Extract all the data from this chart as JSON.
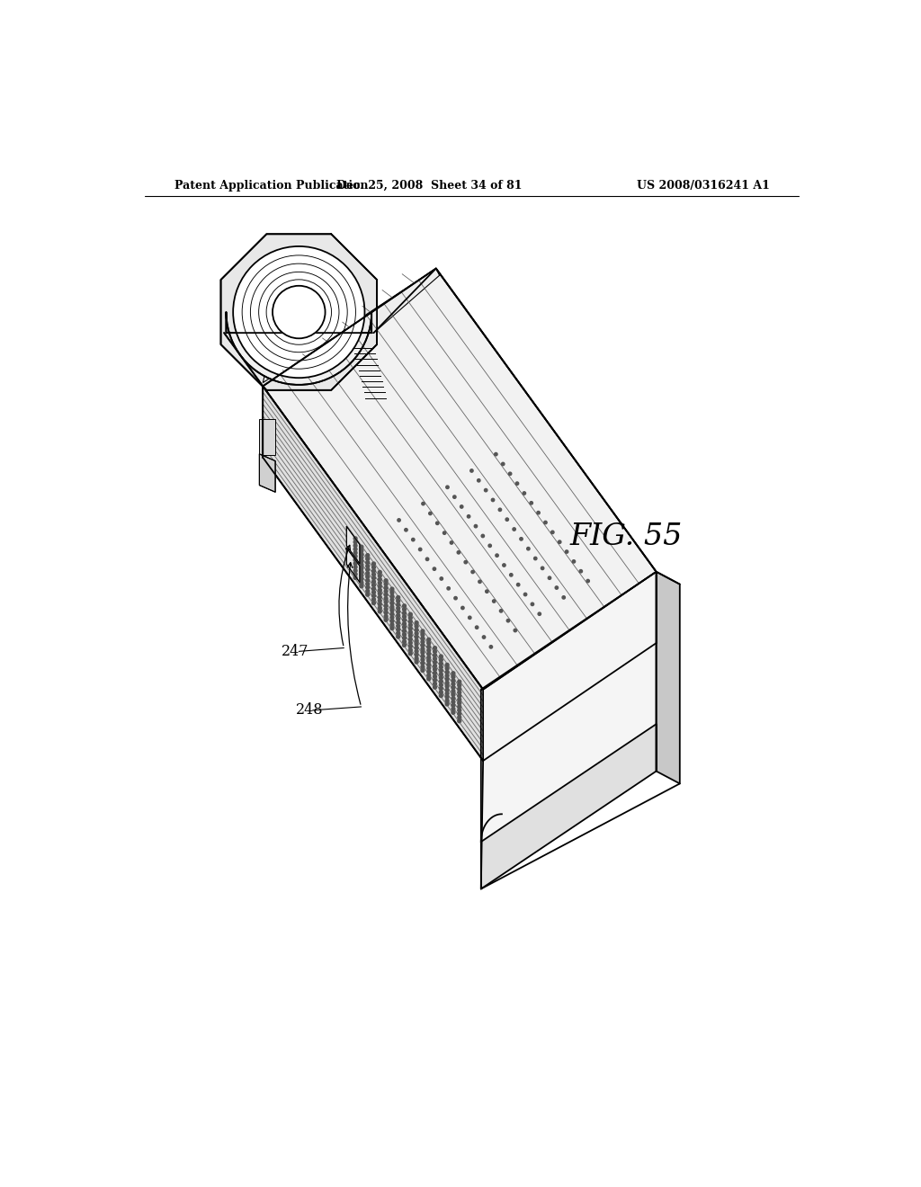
{
  "background_color": "#ffffff",
  "page_width": 10.24,
  "page_height": 13.2,
  "header_left": "Patent Application Publication",
  "header_center": "Dec. 25, 2008  Sheet 34 of 81",
  "header_right": "US 2008/0316241 A1",
  "figure_label": "FIG. 55",
  "label_247": "247",
  "label_248": "248",
  "lc": "#000000",
  "top_face": "#f2f2f2",
  "front_face": "#e0e0e0",
  "right_face": "#c8c8c8",
  "side_face": "#d8d8d8",
  "housing_fill": "#e8e8e8",
  "circle_fill": "#f6f6f6",
  "dot_color": "#555555"
}
